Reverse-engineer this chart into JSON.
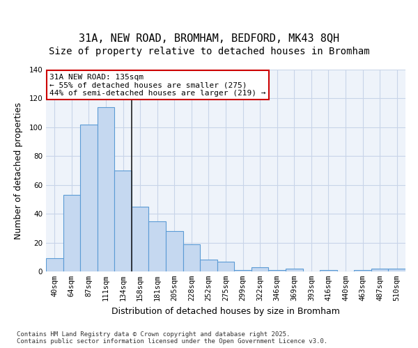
{
  "title1": "31A, NEW ROAD, BROMHAM, BEDFORD, MK43 8QH",
  "title2": "Size of property relative to detached houses in Bromham",
  "xlabel": "Distribution of detached houses by size in Bromham",
  "ylabel": "Number of detached properties",
  "categories": [
    "40sqm",
    "64sqm",
    "87sqm",
    "111sqm",
    "134sqm",
    "158sqm",
    "181sqm",
    "205sqm",
    "228sqm",
    "252sqm",
    "275sqm",
    "299sqm",
    "322sqm",
    "346sqm",
    "369sqm",
    "393sqm",
    "416sqm",
    "440sqm",
    "463sqm",
    "487sqm",
    "510sqm"
  ],
  "values": [
    9,
    53,
    102,
    114,
    70,
    45,
    35,
    28,
    19,
    8,
    7,
    1,
    3,
    1,
    2,
    0,
    1,
    0,
    1,
    2,
    2
  ],
  "bar_color": "#c5d8f0",
  "bar_edge_color": "#5b9bd5",
  "vline_x_index": 4,
  "vline_color": "#1f1f1f",
  "annotation_text": "31A NEW ROAD: 135sqm\n← 55% of detached houses are smaller (275)\n44% of semi-detached houses are larger (219) →",
  "annotation_box_color": "#ffffff",
  "annotation_box_edge_color": "#cc0000",
  "ylim": [
    0,
    140
  ],
  "yticks": [
    0,
    20,
    40,
    60,
    80,
    100,
    120,
    140
  ],
  "grid_color": "#c8d4e8",
  "background_color": "#eef3fa",
  "footer_text": "Contains HM Land Registry data © Crown copyright and database right 2025.\nContains public sector information licensed under the Open Government Licence v3.0.",
  "title_fontsize": 11,
  "subtitle_fontsize": 10,
  "axis_label_fontsize": 9,
  "tick_fontsize": 7.5,
  "annotation_fontsize": 8
}
